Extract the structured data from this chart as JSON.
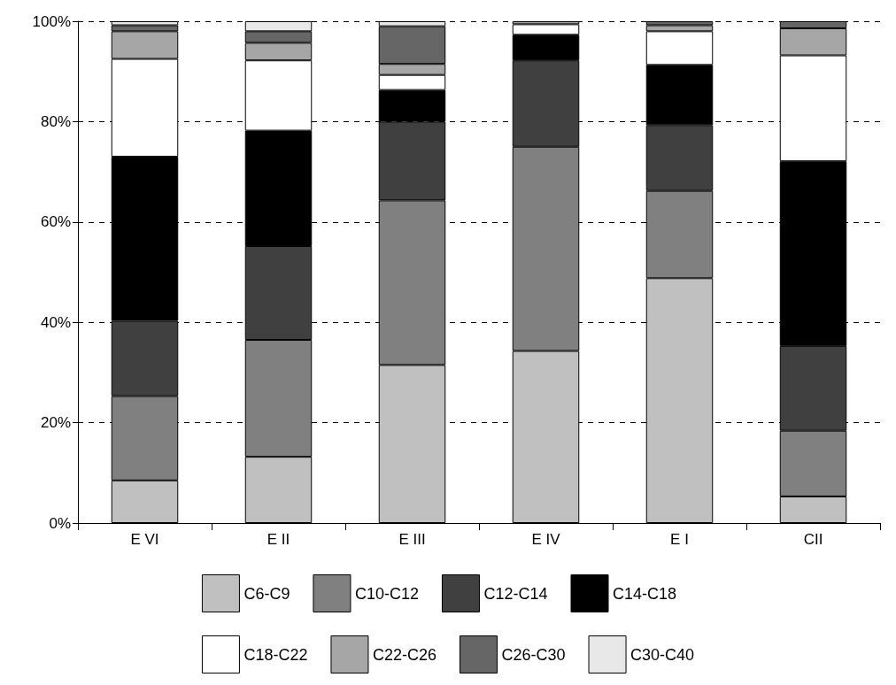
{
  "chart_data": {
    "type": "bar",
    "stacked": true,
    "categories": [
      "E VI",
      "E II",
      "E III",
      "E IV",
      "E I",
      "CII"
    ],
    "series": [
      {
        "name": "C6-C9",
        "color": "#c0c0c0",
        "values": [
          8.5,
          13.2,
          31.5,
          34.3,
          48.8,
          5.3
        ]
      },
      {
        "name": "C10-C12",
        "color": "#808080",
        "values": [
          16.8,
          23.3,
          32.8,
          40.7,
          17.4,
          13.1
        ]
      },
      {
        "name": "C12-C14",
        "color": "#404040",
        "values": [
          15,
          18.7,
          15.7,
          17.2,
          13.1,
          16.9
        ]
      },
      {
        "name": "C14-C18",
        "color": "#000000",
        "values": [
          32.7,
          23,
          6.3,
          5.1,
          12,
          36.8
        ]
      },
      {
        "name": "C18-C22",
        "color": "#ffffff",
        "values": [
          19.5,
          14,
          3,
          2.1,
          6.7,
          21.1
        ]
      },
      {
        "name": "C22-C26",
        "color": "#a6a6a6",
        "values": [
          5.5,
          3.5,
          2.2,
          0.6,
          1.2,
          5.4
        ]
      },
      {
        "name": "C26-C30",
        "color": "#666666",
        "values": [
          1.2,
          2.3,
          7.5,
          0,
          0.8,
          1.4
        ]
      },
      {
        "name": "C30-C40",
        "color": "#e8e8e8",
        "values": [
          0.8,
          2,
          1,
          0,
          0,
          0
        ]
      }
    ],
    "ylim": [
      0,
      100
    ],
    "yticks": [
      {
        "value": 0,
        "label": "0%"
      },
      {
        "value": 20,
        "label": "20%"
      },
      {
        "value": 40,
        "label": "40%"
      },
      {
        "value": 60,
        "label": "60%"
      },
      {
        "value": 80,
        "label": "80%"
      },
      {
        "value": 100,
        "label": "100%"
      }
    ],
    "grid": "y",
    "legend": "bottom"
  }
}
